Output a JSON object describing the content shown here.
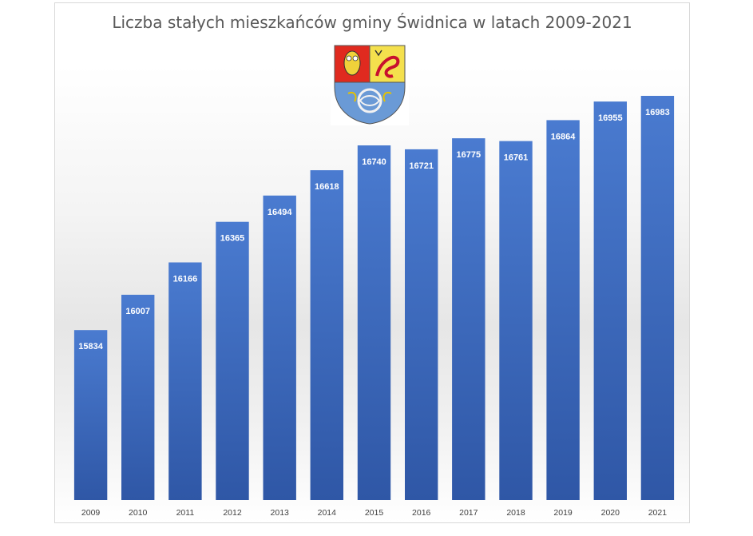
{
  "chart_data": {
    "type": "bar",
    "title": "Liczba stałych mieszkańców gminy Świdnica w latach 2009-2021",
    "xlabel": "",
    "ylabel": "",
    "categories": [
      "2009",
      "2010",
      "2011",
      "2012",
      "2013",
      "2014",
      "2015",
      "2016",
      "2017",
      "2018",
      "2019",
      "2020",
      "2021"
    ],
    "values": [
      15834,
      16007,
      16166,
      16365,
      16494,
      16618,
      16740,
      16721,
      16775,
      16761,
      16864,
      16955,
      16983
    ],
    "ylim": [
      15000,
      17100
    ],
    "grid": false,
    "legend": "none",
    "data_labels": true,
    "colors": {
      "bar_top": "#4a7bd0",
      "bar_bottom": "#2f57a6",
      "label": "#ffffff",
      "tick": "#404040"
    }
  },
  "logo": "coat-of-arms-of-gmina-swidnica"
}
